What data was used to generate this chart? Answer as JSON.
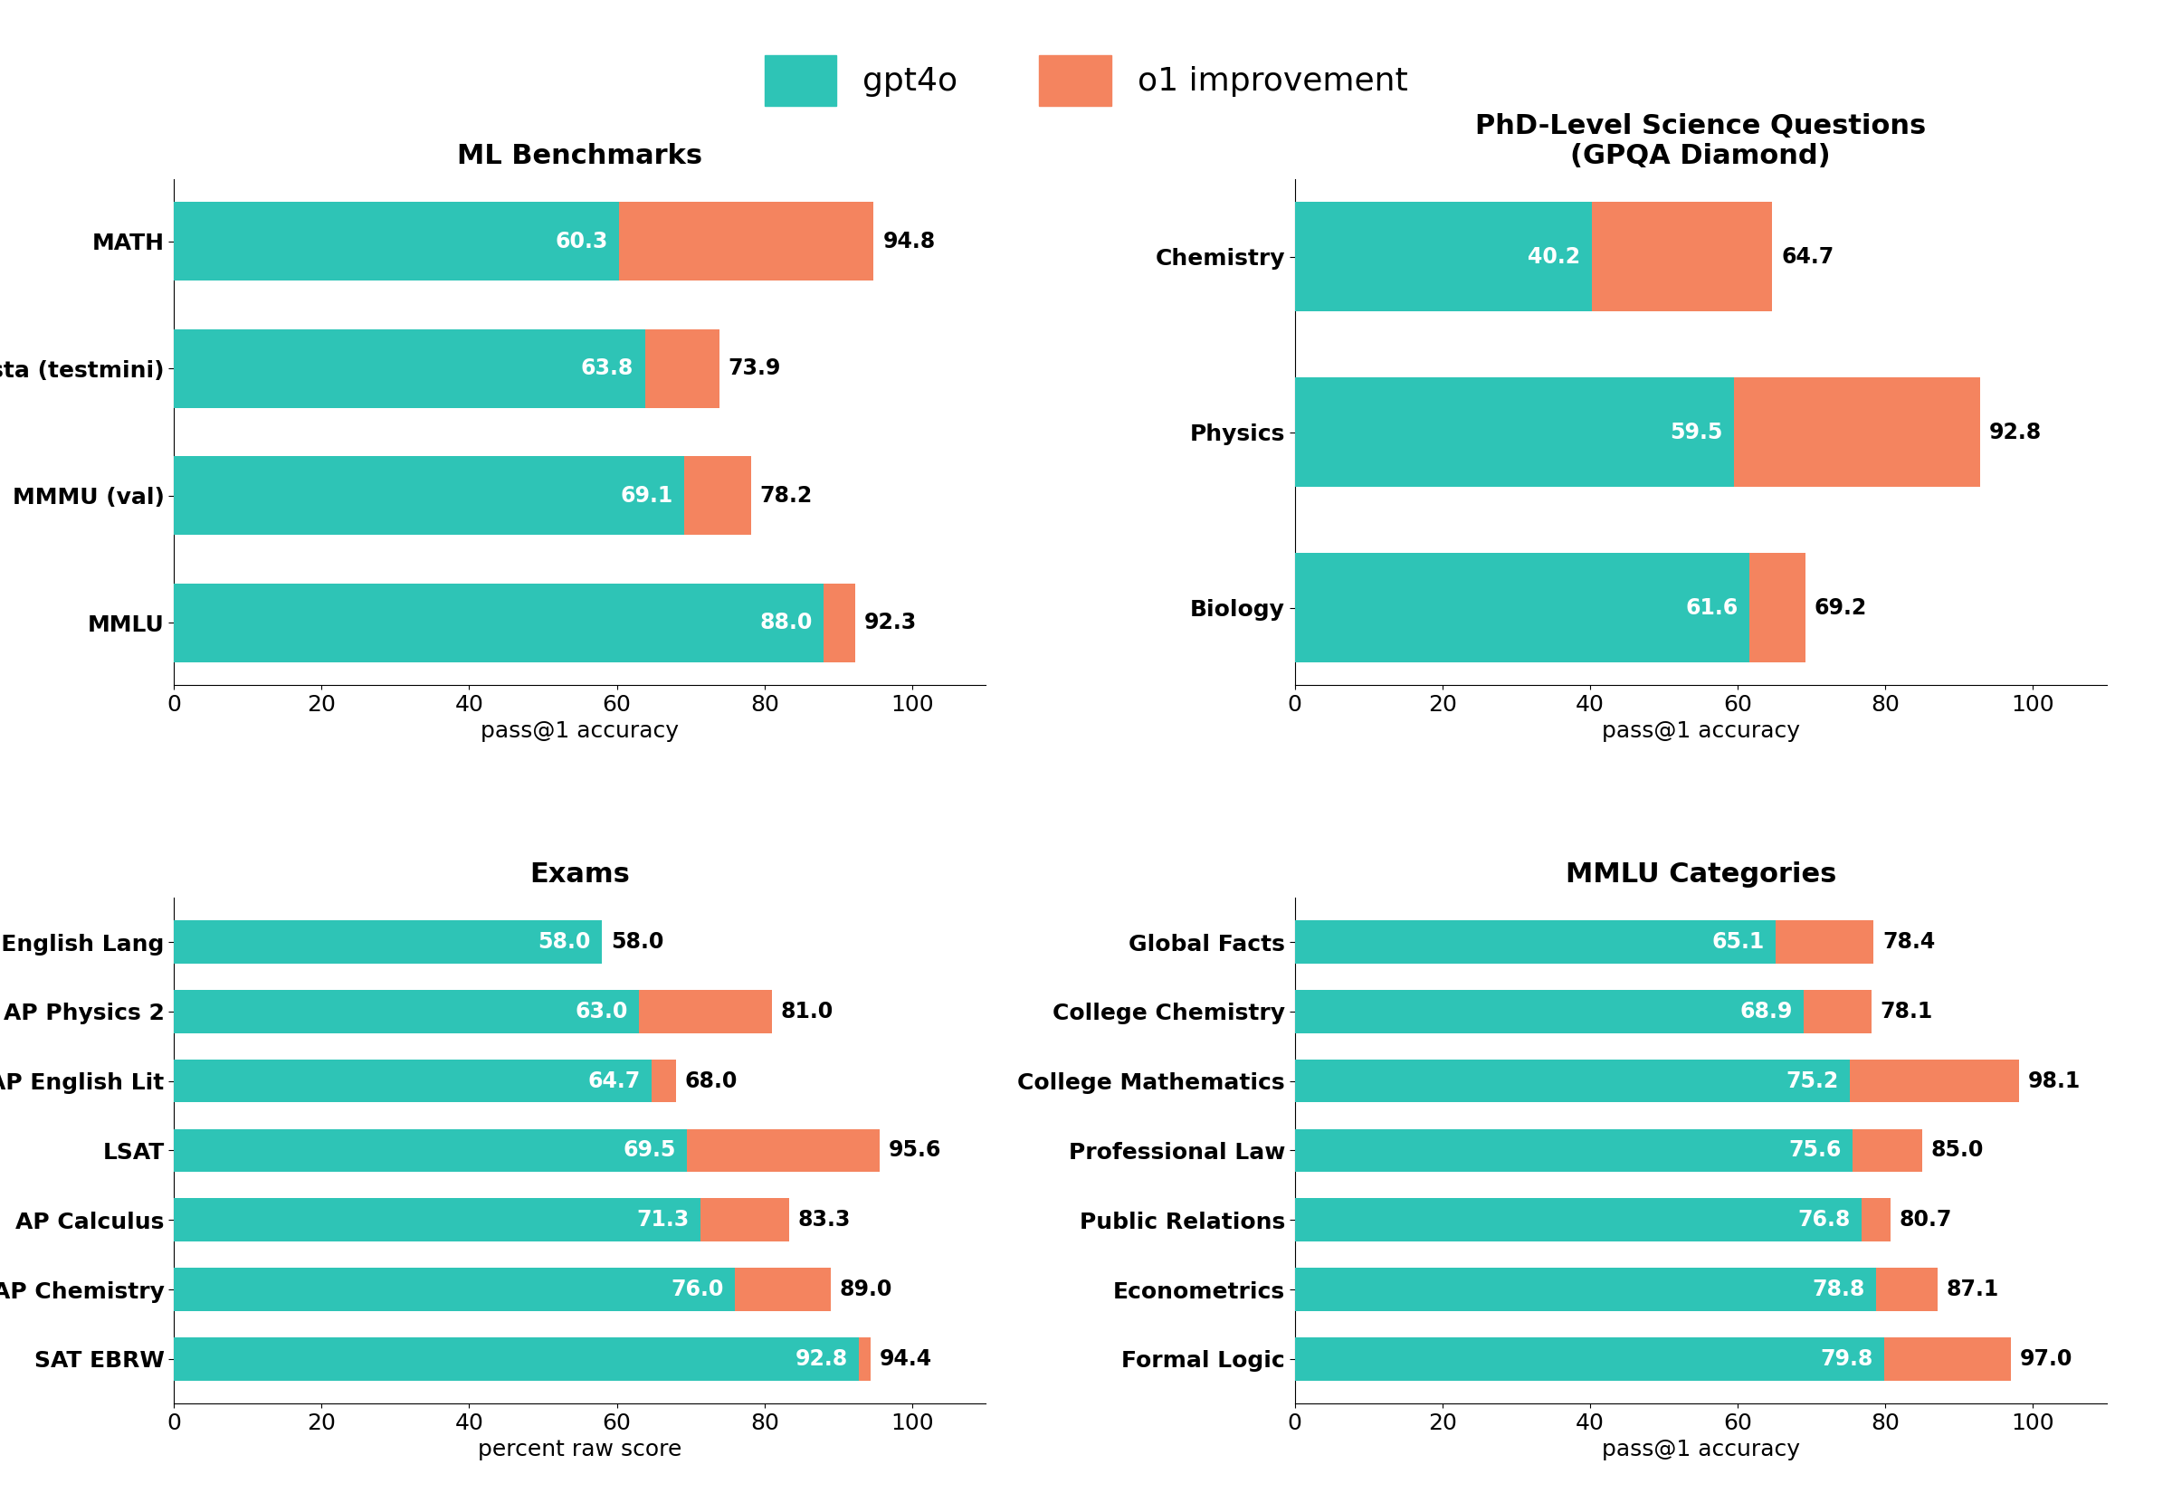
{
  "teal": "#2EC4B6",
  "orange": "#F4845F",
  "background": "#FFFFFF",
  "legend_labels": [
    "gpt4o",
    "o1 improvement"
  ],
  "ml_benchmarks": {
    "title": "ML Benchmarks",
    "xlabel": "pass@1 accuracy",
    "categories": [
      "MMLU",
      "MMMU (val)",
      "MathVista (testmini)",
      "MATH"
    ],
    "gpt4o": [
      88.0,
      69.1,
      63.8,
      60.3
    ],
    "o1": [
      92.3,
      78.2,
      73.9,
      94.8
    ]
  },
  "gpqa": {
    "title": "PhD-Level Science Questions\n(GPQA Diamond)",
    "xlabel": "pass@1 accuracy",
    "categories": [
      "Biology",
      "Physics",
      "Chemistry"
    ],
    "gpt4o": [
      61.6,
      59.5,
      40.2
    ],
    "o1": [
      69.2,
      92.8,
      64.7
    ]
  },
  "exams": {
    "title": "Exams",
    "xlabel": "percent raw score",
    "categories": [
      "SAT EBRW",
      "AP Chemistry",
      "AP Calculus",
      "LSAT",
      "AP English Lit",
      "AP Physics 2",
      "AP English Lang"
    ],
    "gpt4o": [
      92.8,
      76.0,
      71.3,
      69.5,
      64.7,
      63.0,
      58.0
    ],
    "o1": [
      94.4,
      89.0,
      83.3,
      95.6,
      68.0,
      81.0,
      58.0
    ]
  },
  "mmlu_categories": {
    "title": "MMLU Categories",
    "xlabel": "pass@1 accuracy",
    "categories": [
      "Formal Logic",
      "Econometrics",
      "Public Relations",
      "Professional Law",
      "College Mathematics",
      "College Chemistry",
      "Global Facts"
    ],
    "gpt4o": [
      79.8,
      78.8,
      76.8,
      75.6,
      75.2,
      68.9,
      65.1
    ],
    "o1": [
      97.0,
      87.1,
      80.7,
      85.0,
      98.1,
      78.1,
      78.4
    ]
  },
  "title_fontsize": 22,
  "label_fontsize": 18,
  "tick_fontsize": 18,
  "bar_label_fontsize": 17,
  "legend_fontsize": 26,
  "bar_height": 0.62
}
